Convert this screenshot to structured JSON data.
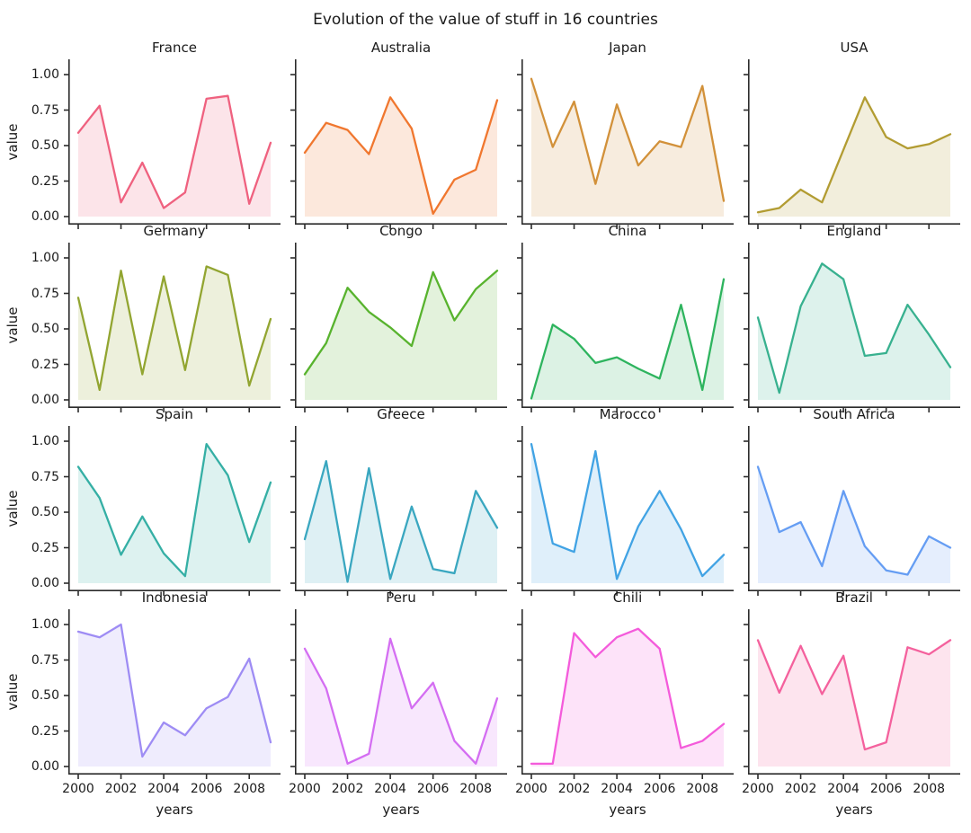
{
  "title": "Evolution of the value of stuff in 16 countries",
  "axes": {
    "ylabel": "value",
    "xlabel": "years",
    "y_ticks": [
      "1.00",
      "0.75",
      "0.50",
      "0.25",
      "0.00"
    ],
    "x_ticks": [
      "2000",
      "2002",
      "2004",
      "2006",
      "2008"
    ]
  },
  "style": {
    "spine_color": "#2b2b2b",
    "fill_alpha": 0.17,
    "line_width": 2.3
  },
  "chart_data": {
    "type": "area",
    "title": "Evolution of the value of stuff in 16 countries",
    "layout": "4x4 small multiples, shared axes",
    "x": [
      2000,
      2001,
      2002,
      2003,
      2004,
      2005,
      2006,
      2007,
      2008,
      2009
    ],
    "xlabel": "years",
    "ylabel": "value",
    "ylim": [
      0,
      1
    ],
    "grid": false,
    "legend": "none (one subplot per series, title above each)",
    "series": [
      {
        "name": "France",
        "color": "#ef617f",
        "values": [
          0.59,
          0.78,
          0.1,
          0.38,
          0.06,
          0.17,
          0.83,
          0.85,
          0.09,
          0.52
        ]
      },
      {
        "name": "Australia",
        "color": "#f0772f",
        "values": [
          0.45,
          0.66,
          0.61,
          0.44,
          0.84,
          0.62,
          0.02,
          0.26,
          0.33,
          0.82
        ]
      },
      {
        "name": "Japan",
        "color": "#d2913a",
        "values": [
          0.97,
          0.49,
          0.81,
          0.23,
          0.79,
          0.36,
          0.53,
          0.49,
          0.92,
          0.11
        ]
      },
      {
        "name": "USA",
        "color": "#b29c32",
        "values": [
          0.03,
          0.06,
          0.19,
          0.1,
          0.47,
          0.84,
          0.56,
          0.48,
          0.51,
          0.58
        ]
      },
      {
        "name": "Germany",
        "color": "#92a531",
        "values": [
          0.72,
          0.07,
          0.91,
          0.18,
          0.87,
          0.21,
          0.94,
          0.88,
          0.1,
          0.57
        ]
      },
      {
        "name": "Congo",
        "color": "#58b32e",
        "values": [
          0.18,
          0.4,
          0.79,
          0.62,
          0.51,
          0.38,
          0.9,
          0.56,
          0.78,
          0.91
        ]
      },
      {
        "name": "China",
        "color": "#2eb45e",
        "values": [
          0.01,
          0.53,
          0.43,
          0.26,
          0.3,
          0.22,
          0.15,
          0.67,
          0.07,
          0.85
        ]
      },
      {
        "name": "England",
        "color": "#38b18f",
        "values": [
          0.58,
          0.05,
          0.66,
          0.96,
          0.85,
          0.31,
          0.33,
          0.67,
          0.46,
          0.23
        ]
      },
      {
        "name": "Spain",
        "color": "#35afa5",
        "values": [
          0.82,
          0.6,
          0.2,
          0.47,
          0.21,
          0.05,
          0.98,
          0.76,
          0.29,
          0.71
        ]
      },
      {
        "name": "Greece",
        "color": "#3aa7c0",
        "values": [
          0.31,
          0.86,
          0.01,
          0.81,
          0.03,
          0.54,
          0.1,
          0.07,
          0.65,
          0.39
        ]
      },
      {
        "name": "Marocco",
        "color": "#41a3e4",
        "values": [
          0.98,
          0.28,
          0.22,
          0.93,
          0.03,
          0.4,
          0.65,
          0.38,
          0.05,
          0.2
        ]
      },
      {
        "name": "South Africa",
        "color": "#659df3",
        "values": [
          0.82,
          0.36,
          0.43,
          0.12,
          0.65,
          0.26,
          0.09,
          0.06,
          0.33,
          0.25
        ]
      },
      {
        "name": "Indonesia",
        "color": "#9e8cf4",
        "values": [
          0.95,
          0.91,
          1.0,
          0.07,
          0.31,
          0.22,
          0.41,
          0.49,
          0.76,
          0.17
        ]
      },
      {
        "name": "Peru",
        "color": "#d46ef2",
        "values": [
          0.83,
          0.55,
          0.02,
          0.09,
          0.9,
          0.41,
          0.59,
          0.18,
          0.02,
          0.48
        ]
      },
      {
        "name": "Chili",
        "color": "#f45bdb",
        "values": [
          0.02,
          0.02,
          0.94,
          0.77,
          0.91,
          0.97,
          0.83,
          0.13,
          0.18,
          0.3
        ]
      },
      {
        "name": "Brazil",
        "color": "#f4619d",
        "values": [
          0.89,
          0.52,
          0.85,
          0.51,
          0.78,
          0.12,
          0.17,
          0.84,
          0.79,
          0.89
        ]
      }
    ]
  }
}
